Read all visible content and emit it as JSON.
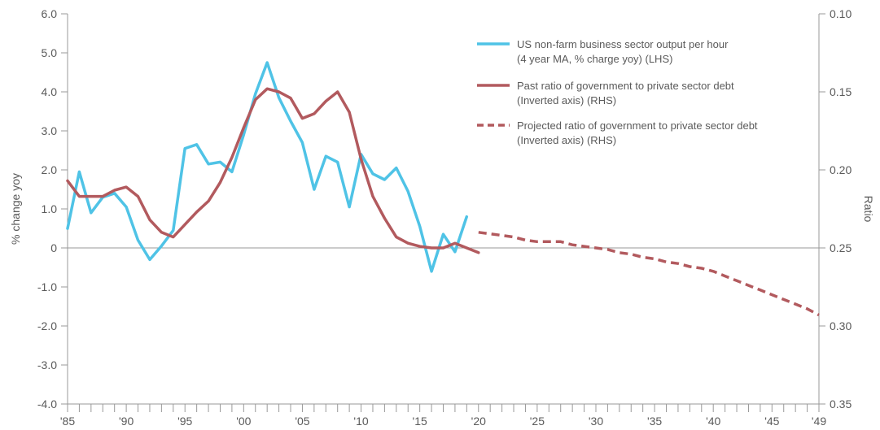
{
  "chart_data": {
    "type": "line",
    "left_axis": {
      "label": "% change yoy",
      "ylim": [
        -4.0,
        6.0
      ],
      "ticks": [
        "6.0",
        "5.0",
        "4.0",
        "3.0",
        "2.0",
        "1.0",
        "0",
        "-1.0",
        "-2.0",
        "-3.0",
        "-4.0"
      ]
    },
    "right_axis": {
      "label": "Ratio",
      "ylim": [
        0.1,
        0.35
      ],
      "inverted": true,
      "ticks": [
        "0.10",
        "0.15",
        "0.20",
        "0.25",
        "0.30",
        "0.35"
      ]
    },
    "x_axis": {
      "xlim": [
        1985,
        2049
      ],
      "tick_labels": [
        "'85",
        "'90",
        "'95",
        "'00",
        "'05",
        "'10",
        "'15",
        "'20",
        "'25",
        "'30",
        "'35",
        "'40",
        "'45",
        "'49"
      ],
      "tick_years": [
        1985,
        1990,
        1995,
        2000,
        2005,
        2010,
        2015,
        2020,
        2025,
        2030,
        2035,
        2040,
        2045,
        2049
      ]
    },
    "grid": false,
    "legend_position": "top-right",
    "colors": {
      "productivity": "#4fc3e6",
      "debt": "#b25a5e",
      "axis": "#999999",
      "text": "#5a5a5a"
    },
    "series": [
      {
        "name": "US non-farm business sector output per hour (4 year MA, % charge yoy) (LHS)",
        "legend_lines": [
          "US non-farm business sector output per hour",
          "(4 year MA, % charge yoy) (LHS)"
        ],
        "axis": "left",
        "style": "solid",
        "points": [
          [
            1985,
            0.5
          ],
          [
            1986,
            1.95
          ],
          [
            1987,
            0.9
          ],
          [
            1988,
            1.3
          ],
          [
            1989,
            1.4
          ],
          [
            1990,
            1.05
          ],
          [
            1991,
            0.2
          ],
          [
            1992,
            -0.3
          ],
          [
            1993,
            0.05
          ],
          [
            1994,
            0.45
          ],
          [
            1995,
            2.55
          ],
          [
            1996,
            2.65
          ],
          [
            1997,
            2.15
          ],
          [
            1998,
            2.2
          ],
          [
            1999,
            1.95
          ],
          [
            2000,
            2.9
          ],
          [
            2001,
            3.95
          ],
          [
            2002,
            4.75
          ],
          [
            2003,
            3.85
          ],
          [
            2004,
            3.25
          ],
          [
            2005,
            2.7
          ],
          [
            2006,
            1.5
          ],
          [
            2007,
            2.35
          ],
          [
            2008,
            2.2
          ],
          [
            2009,
            1.05
          ],
          [
            2010,
            2.4
          ],
          [
            2011,
            1.9
          ],
          [
            2012,
            1.75
          ],
          [
            2013,
            2.05
          ],
          [
            2014,
            1.45
          ],
          [
            2015,
            0.55
          ],
          [
            2016,
            -0.6
          ],
          [
            2017,
            0.35
          ],
          [
            2018,
            -0.1
          ],
          [
            2019,
            0.8
          ]
        ]
      },
      {
        "name": "Past ratio of government to private sector debt (Inverted axis) (RHS)",
        "legend_lines": [
          "Past ratio of government to private sector debt",
          "(Inverted axis) (RHS)"
        ],
        "axis": "right",
        "style": "solid",
        "points": [
          [
            1985,
            0.207
          ],
          [
            1986,
            0.217
          ],
          [
            1987,
            0.217
          ],
          [
            1988,
            0.217
          ],
          [
            1989,
            0.213
          ],
          [
            1990,
            0.211
          ],
          [
            1991,
            0.217
          ],
          [
            1992,
            0.232
          ],
          [
            1993,
            0.24
          ],
          [
            1994,
            0.243
          ],
          [
            1995,
            0.235
          ],
          [
            1996,
            0.227
          ],
          [
            1997,
            0.22
          ],
          [
            1998,
            0.208
          ],
          [
            1999,
            0.192
          ],
          [
            2000,
            0.173
          ],
          [
            2001,
            0.155
          ],
          [
            2002,
            0.148
          ],
          [
            2003,
            0.15
          ],
          [
            2004,
            0.154
          ],
          [
            2005,
            0.167
          ],
          [
            2006,
            0.164
          ],
          [
            2007,
            0.156
          ],
          [
            2008,
            0.15
          ],
          [
            2009,
            0.163
          ],
          [
            2010,
            0.193
          ],
          [
            2011,
            0.217
          ],
          [
            2012,
            0.231
          ],
          [
            2013,
            0.243
          ],
          [
            2014,
            0.247
          ],
          [
            2015,
            0.249
          ],
          [
            2016,
            0.25
          ],
          [
            2017,
            0.25
          ],
          [
            2018,
            0.247
          ],
          [
            2019,
            0.25
          ],
          [
            2020,
            0.253
          ]
        ]
      },
      {
        "name": "Projected ratio of government to private sector debt (Inverted axis) (RHS)",
        "legend_lines": [
          "Projected ratio of government to private sector debt",
          "(Inverted axis) (RHS)"
        ],
        "axis": "right",
        "style": "dashed",
        "points": [
          [
            2020,
            0.24
          ],
          [
            2021,
            0.241
          ],
          [
            2022,
            0.242
          ],
          [
            2023,
            0.243
          ],
          [
            2024,
            0.245
          ],
          [
            2025,
            0.246
          ],
          [
            2026,
            0.246
          ],
          [
            2027,
            0.246
          ],
          [
            2028,
            0.248
          ],
          [
            2029,
            0.249
          ],
          [
            2030,
            0.25
          ],
          [
            2031,
            0.251
          ],
          [
            2032,
            0.253
          ],
          [
            2033,
            0.254
          ],
          [
            2034,
            0.256
          ],
          [
            2035,
            0.257
          ],
          [
            2036,
            0.259
          ],
          [
            2037,
            0.26
          ],
          [
            2038,
            0.262
          ],
          [
            2039,
            0.263
          ],
          [
            2040,
            0.265
          ],
          [
            2041,
            0.268
          ],
          [
            2042,
            0.271
          ],
          [
            2043,
            0.274
          ],
          [
            2044,
            0.277
          ],
          [
            2045,
            0.28
          ],
          [
            2046,
            0.283
          ],
          [
            2047,
            0.286
          ],
          [
            2048,
            0.289
          ],
          [
            2049,
            0.293
          ]
        ]
      }
    ]
  }
}
